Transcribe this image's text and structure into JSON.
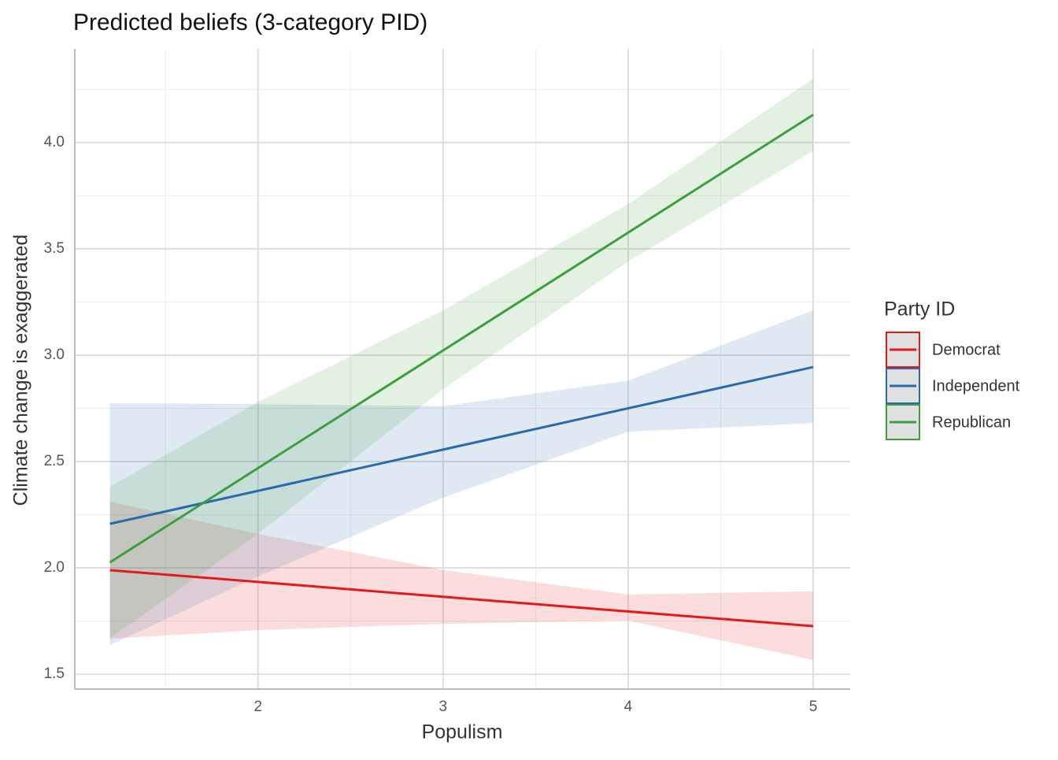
{
  "chart_data": {
    "type": "line-ribbon",
    "title": "Predicted beliefs (3-category PID)",
    "x_label": "Populism",
    "y_label": "Climate change is exaggerated",
    "legend_title": "Party ID",
    "legend_position": "right",
    "grid": true,
    "x": [
      1.2,
      2,
      3,
      4,
      5
    ],
    "series": [
      {
        "name": "Democrat",
        "color": "#e31a1c",
        "values": [
          1.989,
          1.934,
          1.864,
          1.795,
          1.726
        ],
        "lower": [
          1.667,
          1.707,
          1.737,
          1.752,
          1.567
        ],
        "upper": [
          2.311,
          2.16,
          1.99,
          1.875,
          1.89
        ]
      },
      {
        "name": "Independent",
        "color": "#2b69ac",
        "values": [
          2.207,
          2.362,
          2.556,
          2.75,
          2.944
        ],
        "lower": [
          1.637,
          1.96,
          2.33,
          2.64,
          2.68
        ],
        "upper": [
          2.774,
          2.77,
          2.76,
          2.88,
          3.21
        ]
      },
      {
        "name": "Republican",
        "color": "#3d9e3d",
        "values": [
          2.026,
          2.469,
          3.022,
          3.576,
          4.13
        ],
        "lower": [
          1.67,
          2.16,
          2.84,
          3.44,
          3.96
        ],
        "upper": [
          2.381,
          2.78,
          3.21,
          3.71,
          4.3
        ]
      }
    ],
    "xlim": [
      1.01,
      5.2
    ],
    "ylim": [
      1.43,
      4.44
    ],
    "xticks": [
      2,
      3,
      4,
      5
    ],
    "yticks": [
      {
        "value": 1.5,
        "label": "1.5"
      },
      {
        "value": 2,
        "label": "2.0"
      },
      {
        "value": 2.5,
        "label": "2.5"
      },
      {
        "value": 3,
        "label": "3.0"
      },
      {
        "value": 3.5,
        "label": "3.5"
      },
      {
        "value": 4,
        "label": "4.0"
      }
    ],
    "xminor": [
      1.5,
      2.5,
      3.5,
      4.5
    ],
    "yminor": [
      1.75,
      2.25,
      2.75,
      3.25,
      3.75,
      4.25
    ]
  }
}
